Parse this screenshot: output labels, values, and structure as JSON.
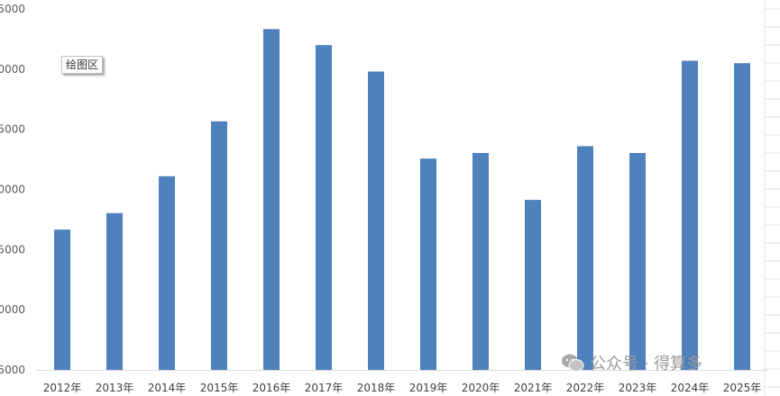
{
  "chart_data": {
    "type": "bar",
    "categories": [
      "2012年",
      "2013年",
      "2014年",
      "2015年",
      "2016年",
      "2017年",
      "2018年",
      "2019年",
      "2020年",
      "2021年",
      "2022年",
      "2023年",
      "2024年",
      "2025年"
    ],
    "values": [
      6500,
      6910,
      7830,
      9200,
      11500,
      11100,
      10440,
      8270,
      8410,
      7240,
      8580,
      8410,
      10710,
      10650
    ],
    "ytick_labels": [
      "5000",
      "0000",
      "5000",
      "0000",
      "5000",
      "0000",
      "5000"
    ],
    "ylim": [
      2000,
      13000
    ],
    "grid": false,
    "bar_color": "#4f81bd"
  },
  "tooltip": {
    "label": "绘图区"
  },
  "watermark": {
    "text": "公众号 · 得算多",
    "icon": "wechat-icon"
  }
}
